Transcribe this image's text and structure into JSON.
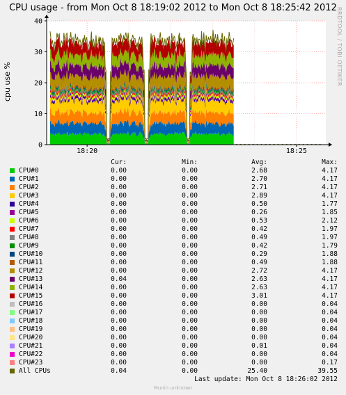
{
  "header": {
    "title": "CPU usage - from Mon Oct  8 18:19:02 2012 to Mon Oct  8 18:25:42 2012",
    "watermark": "RRDTOOL / TOBI OETIKER"
  },
  "legend_header": {
    "cur": "Cur:",
    "min": "Min:",
    "avg": "Avg:",
    "max": "Max:"
  },
  "legend": [
    {
      "name": "CPU#0",
      "color": "#00cc00",
      "cur": "0.00",
      "min": "0.00",
      "avg": "2.68",
      "max": "4.17"
    },
    {
      "name": "CPU#1",
      "color": "#0066b3",
      "cur": "0.00",
      "min": "0.00",
      "avg": "2.70",
      "max": "4.17"
    },
    {
      "name": "CPU#2",
      "color": "#ff8000",
      "cur": "0.00",
      "min": "0.00",
      "avg": "2.71",
      "max": "4.17"
    },
    {
      "name": "CPU#3",
      "color": "#ffcc00",
      "cur": "0.00",
      "min": "0.00",
      "avg": "2.89",
      "max": "4.17"
    },
    {
      "name": "CPU#4",
      "color": "#330099",
      "cur": "0.00",
      "min": "0.00",
      "avg": "0.50",
      "max": "1.77"
    },
    {
      "name": "CPU#5",
      "color": "#990099",
      "cur": "0.00",
      "min": "0.00",
      "avg": "0.26",
      "max": "1.85"
    },
    {
      "name": "CPU#6",
      "color": "#ccff00",
      "cur": "0.00",
      "min": "0.00",
      "avg": "0.53",
      "max": "2.12"
    },
    {
      "name": "CPU#7",
      "color": "#ff0000",
      "cur": "0.00",
      "min": "0.00",
      "avg": "0.42",
      "max": "1.97"
    },
    {
      "name": "CPU#8",
      "color": "#808080",
      "cur": "0.00",
      "min": "0.00",
      "avg": "0.49",
      "max": "1.97"
    },
    {
      "name": "CPU#9",
      "color": "#008f00",
      "cur": "0.00",
      "min": "0.00",
      "avg": "0.42",
      "max": "1.79"
    },
    {
      "name": "CPU#10",
      "color": "#00487d",
      "cur": "0.00",
      "min": "0.00",
      "avg": "0.29",
      "max": "1.88"
    },
    {
      "name": "CPU#11",
      "color": "#b35a00",
      "cur": "0.00",
      "min": "0.00",
      "avg": "0.49",
      "max": "1.88"
    },
    {
      "name": "CPU#12",
      "color": "#b38f00",
      "cur": "0.00",
      "min": "0.00",
      "avg": "2.72",
      "max": "4.17"
    },
    {
      "name": "CPU#13",
      "color": "#6b006b",
      "cur": "0.04",
      "min": "0.00",
      "avg": "2.63",
      "max": "4.17"
    },
    {
      "name": "CPU#14",
      "color": "#8fb300",
      "cur": "0.00",
      "min": "0.00",
      "avg": "2.63",
      "max": "4.17"
    },
    {
      "name": "CPU#15",
      "color": "#b30000",
      "cur": "0.00",
      "min": "0.00",
      "avg": "3.01",
      "max": "4.17"
    },
    {
      "name": "CPU#16",
      "color": "#bebebe",
      "cur": "0.00",
      "min": "0.00",
      "avg": "0.00",
      "max": "0.04"
    },
    {
      "name": "CPU#17",
      "color": "#80ff80",
      "cur": "0.00",
      "min": "0.00",
      "avg": "0.00",
      "max": "0.04"
    },
    {
      "name": "CPU#18",
      "color": "#80c9ff",
      "cur": "0.00",
      "min": "0.00",
      "avg": "0.00",
      "max": "0.04"
    },
    {
      "name": "CPU#19",
      "color": "#ffc080",
      "cur": "0.00",
      "min": "0.00",
      "avg": "0.00",
      "max": "0.04"
    },
    {
      "name": "CPU#20",
      "color": "#ffe680",
      "cur": "0.00",
      "min": "0.00",
      "avg": "0.00",
      "max": "0.04"
    },
    {
      "name": "CPU#21",
      "color": "#aa80ff",
      "cur": "0.00",
      "min": "0.00",
      "avg": "0.01",
      "max": "0.04"
    },
    {
      "name": "CPU#22",
      "color": "#ee00cc",
      "cur": "0.00",
      "min": "0.00",
      "avg": "0.00",
      "max": "0.04"
    },
    {
      "name": "CPU#23",
      "color": "#ff8080",
      "cur": "0.00",
      "min": "0.00",
      "avg": "0.00",
      "max": "0.17"
    },
    {
      "name": "All CPUs",
      "color": "#666600",
      "cur": "0.04",
      "min": "0.00",
      "avg": "25.40",
      "max": "39.55"
    }
  ],
  "last_update": "Last update:  Mon Oct  8 18:26:02 2012",
  "footer": "Munin unknown",
  "chart_data": {
    "type": "area",
    "title": "CPU usage - from Mon Oct  8 18:19:02 2012 to Mon Oct  8 18:25:42 2012",
    "ylabel": "cpu use %",
    "xlabel": "",
    "ylim": [
      0,
      40
    ],
    "xlim": [
      "18:19:02",
      "18:25:42"
    ],
    "yticks": [
      0,
      10,
      20,
      30,
      40
    ],
    "xticks": [
      "18:20",
      "18:25"
    ],
    "grid": true,
    "stacked": true,
    "data_ends_at": "18:23:30",
    "dips_at": [
      "18:20:30",
      "18:21:25",
      "18:22:25"
    ],
    "series": [
      {
        "name": "CPU#0",
        "color": "#00cc00",
        "level": 3.5
      },
      {
        "name": "CPU#1",
        "color": "#0066b3",
        "level": 3.5
      },
      {
        "name": "CPU#2",
        "color": "#ff8000",
        "level": 3.5
      },
      {
        "name": "CPU#3",
        "color": "#ffcc00",
        "level": 3.8
      },
      {
        "name": "CPU#4",
        "color": "#330099",
        "level": 0.6
      },
      {
        "name": "CPU#5",
        "color": "#990099",
        "level": 0.35
      },
      {
        "name": "CPU#6",
        "color": "#ccff00",
        "level": 0.7
      },
      {
        "name": "CPU#7",
        "color": "#ff0000",
        "level": 0.55
      },
      {
        "name": "CPU#8",
        "color": "#808080",
        "level": 0.6
      },
      {
        "name": "CPU#9",
        "color": "#008f00",
        "level": 0.55
      },
      {
        "name": "CPU#10",
        "color": "#00487d",
        "level": 0.4
      },
      {
        "name": "CPU#11",
        "color": "#b35a00",
        "level": 0.6
      },
      {
        "name": "CPU#12",
        "color": "#b38f00",
        "level": 3.5
      },
      {
        "name": "CPU#13",
        "color": "#6b006b",
        "level": 3.4
      },
      {
        "name": "CPU#14",
        "color": "#8fb300",
        "level": 3.4
      },
      {
        "name": "CPU#15",
        "color": "#b30000",
        "level": 3.9
      }
    ],
    "total_series": {
      "name": "All CPUs",
      "color": "#666600"
    }
  }
}
